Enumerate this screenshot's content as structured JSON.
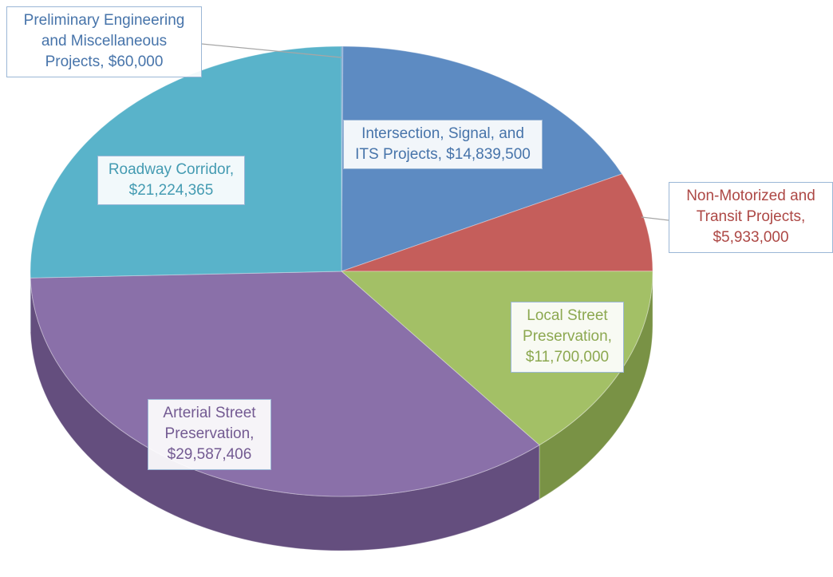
{
  "chart_data": {
    "type": "pie",
    "labels": [
      "Preliminary Engineering and Miscellaneous Projects, $60,000",
      "Intersection, Signal, and ITS Projects, $14,839,500",
      "Non-Motorized and Transit Projects, $5,933,000",
      "Local Street Preservation, $11,700,000",
      "Arterial Street Preservation, $29,587,406",
      "Roadway Corridor, $21,224,365"
    ],
    "values": [
      60000,
      14839500,
      5933000,
      11700000,
      29587406,
      21224365
    ],
    "colors": [
      "#4f81bd",
      "#4f81bd",
      "#c0504d",
      "#9bbb59",
      "#8064a2",
      "#4bacc6"
    ],
    "three_d": true
  }
}
